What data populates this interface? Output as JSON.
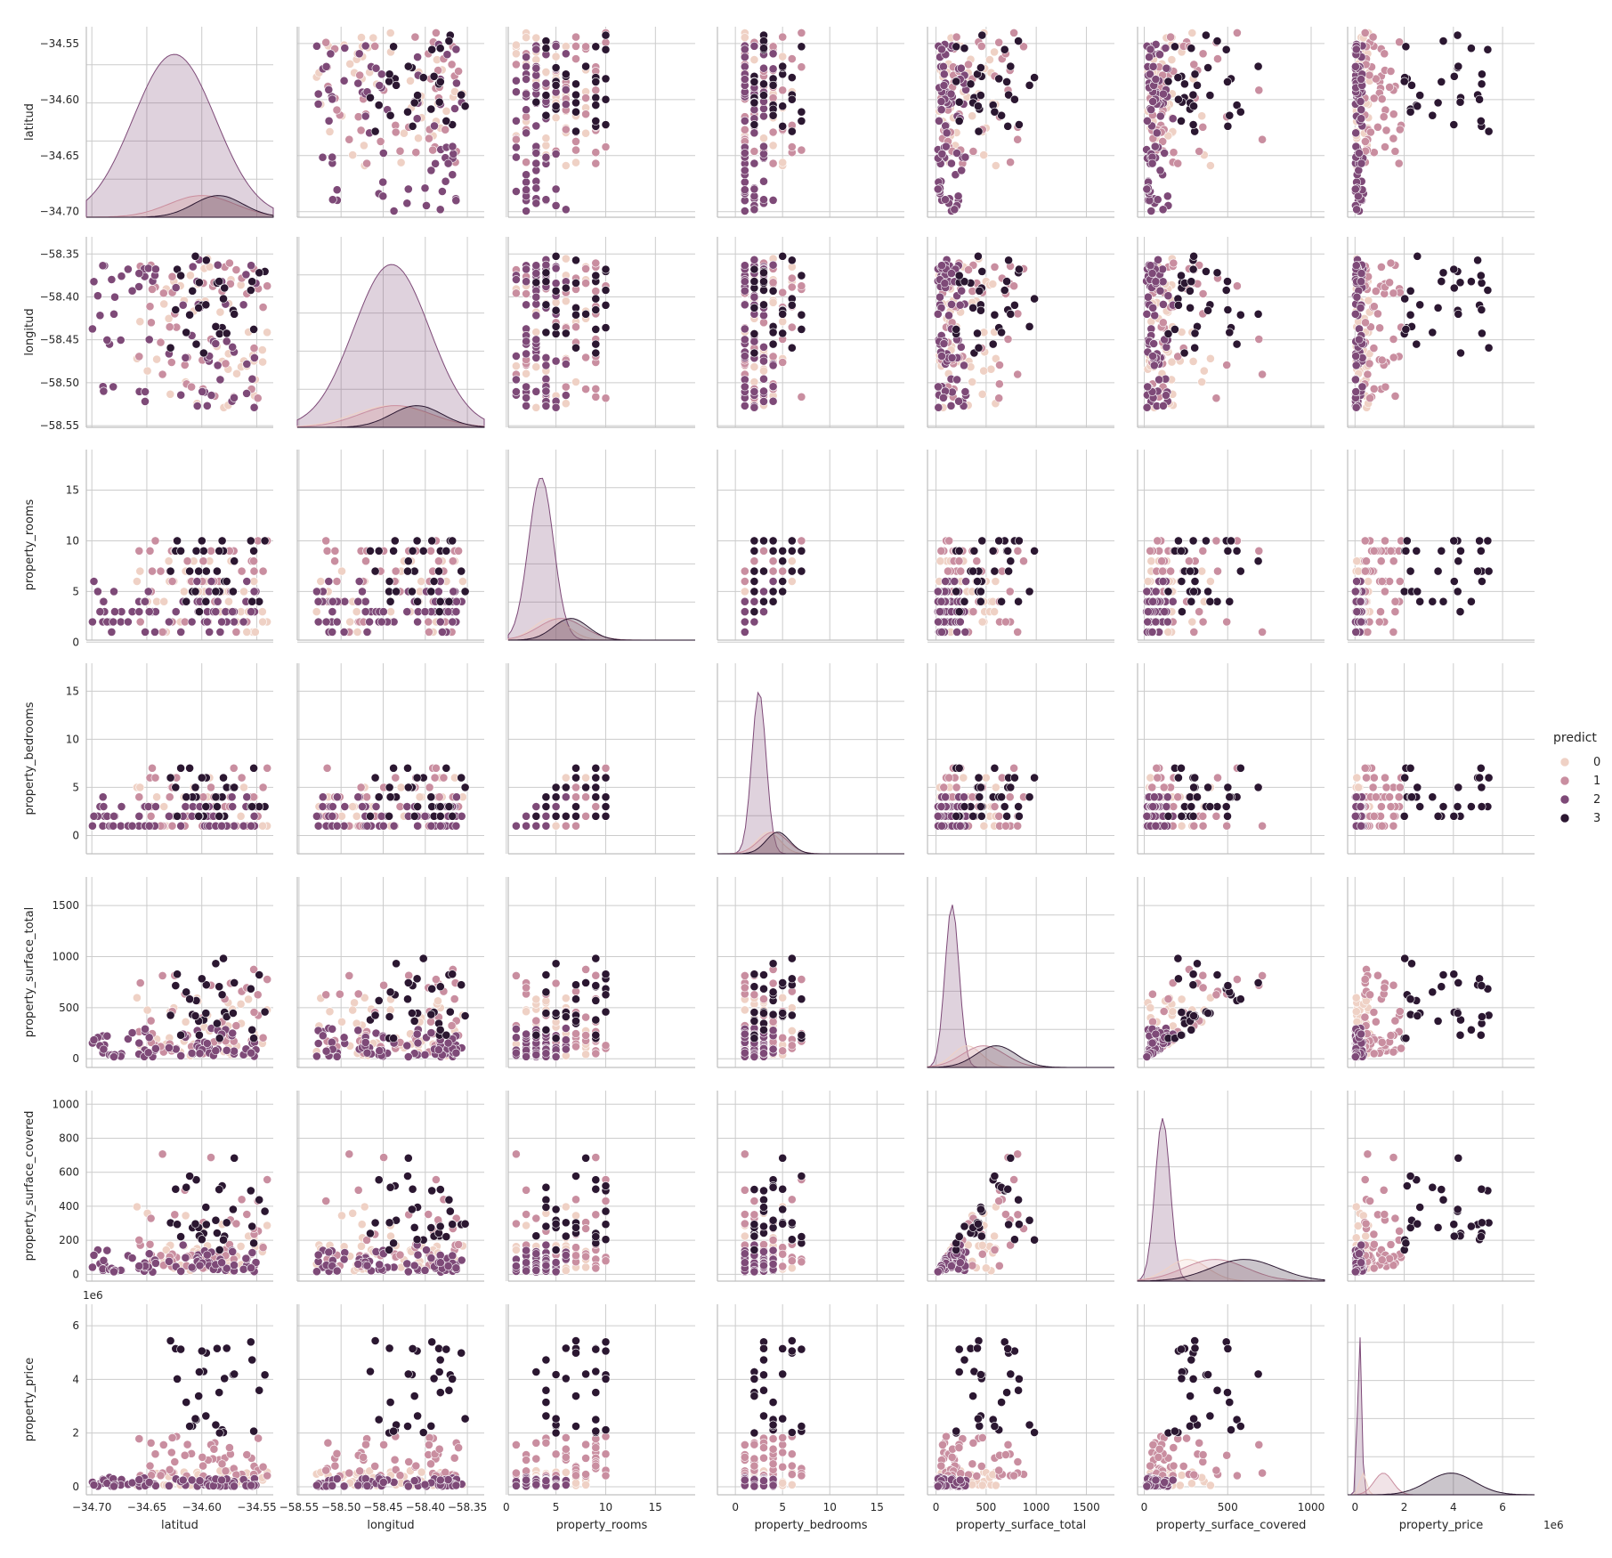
{
  "chart_data": {
    "type": "scatter",
    "kind": "pairplot",
    "variables": [
      "latitud",
      "longitud",
      "property_rooms",
      "property_bedrooms",
      "property_surface_total",
      "property_surface_covered",
      "property_price"
    ],
    "axes": {
      "latitud": {
        "label": "latitud",
        "ticks": [
          -34.7,
          -34.65,
          -34.6,
          -34.55
        ],
        "tick_labels": [
          "−34.70",
          "−34.65",
          "−34.60",
          "−34.55"
        ],
        "lim": [
          -34.705,
          -34.535
        ]
      },
      "longitud": {
        "label": "longitud",
        "ticks": [
          -58.55,
          -58.5,
          -58.45,
          -58.4,
          -58.35
        ],
        "tick_labels": [
          "−58.55",
          "−58.50",
          "−58.45",
          "−58.40",
          "−58.35"
        ],
        "lim": [
          -58.552,
          -58.33
        ]
      },
      "property_rooms": {
        "label": "property_rooms",
        "ticks": [
          0,
          5,
          10,
          15
        ],
        "tick_labels": [
          "0",
          "5",
          "10",
          "15"
        ],
        "lim": [
          0.2,
          19.0
        ]
      },
      "property_bedrooms": {
        "label": "property_bedrooms",
        "ticks": [
          0,
          5,
          10,
          15
        ],
        "tick_labels": [
          "0",
          "5",
          "10",
          "15"
        ],
        "lim": [
          -1.9,
          17.9
        ]
      },
      "property_surface_total": {
        "label": "property_surface_total",
        "ticks": [
          0,
          500,
          1000,
          1500
        ],
        "tick_labels": [
          "0",
          "500",
          "1000",
          "1500"
        ],
        "lim": [
          -85,
          1780
        ]
      },
      "property_surface_covered": {
        "label": "property_surface_covered",
        "ticks": [
          0,
          200,
          400,
          600,
          800,
          1000
        ],
        "tick_labels": [
          "0",
          "200",
          "400",
          "600",
          "800",
          "1000"
        ],
        "lim": [
          -40,
          1080
        ]
      },
      "property_price": {
        "label": "property_price",
        "ticks": [
          0,
          2,
          4,
          6
        ],
        "tick_labels": [
          "0",
          "2",
          "4",
          "6"
        ],
        "lim": [
          -0.3,
          6.8
        ],
        "offset_text": "1e6"
      }
    },
    "x_tick_overrides": {
      "property_surface_covered": {
        "ticks": [
          0,
          500,
          1000
        ],
        "tick_labels": [
          "0",
          "500",
          "1000"
        ]
      },
      "property_price": {
        "lim": [
          -0.3,
          7.3
        ]
      }
    },
    "legend": {
      "title": "predict",
      "placement": "right",
      "entries": [
        {
          "name": "0",
          "color": "#efd1c5"
        },
        {
          "name": "1",
          "color": "#c98ea0"
        },
        {
          "name": "2",
          "color": "#7e4a78"
        },
        {
          "name": "3",
          "color": "#2b1731"
        }
      ]
    },
    "cluster_profiles": [
      {
        "predict": "0",
        "latitud": [
          -34.66,
          -34.54
        ],
        "longitud": [
          -58.53,
          -58.35
        ],
        "property_rooms": [
          1,
          8
        ],
        "property_bedrooms": [
          1,
          6
        ],
        "property_surface_total": [
          20,
          600
        ],
        "property_surface_covered": [
          20,
          500
        ],
        "property_price": [
          0.05,
          0.6
        ]
      },
      {
        "predict": "1",
        "latitud": [
          -34.66,
          -34.54
        ],
        "longitud": [
          -58.52,
          -58.35
        ],
        "property_rooms": [
          1,
          10
        ],
        "property_bedrooms": [
          1,
          7
        ],
        "property_surface_total": [
          50,
          900
        ],
        "property_surface_covered": [
          50,
          800
        ],
        "property_price": [
          0.4,
          1.9
        ]
      },
      {
        "predict": "2",
        "latitud": [
          -34.7,
          -34.55
        ],
        "longitud": [
          -58.53,
          -58.35
        ],
        "property_rooms": [
          1,
          6
        ],
        "property_bedrooms": [
          1,
          4
        ],
        "property_surface_total": [
          20,
          300
        ],
        "property_surface_covered": [
          20,
          200
        ],
        "property_price": [
          0.02,
          0.35
        ]
      },
      {
        "predict": "3",
        "latitud": [
          -34.63,
          -34.54
        ],
        "longitud": [
          -58.47,
          -58.35
        ],
        "property_rooms": [
          3,
          10
        ],
        "property_bedrooms": [
          2,
          7
        ],
        "property_surface_total": [
          200,
          1000
        ],
        "property_surface_covered": [
          200,
          1000
        ],
        "property_price": [
          2.0,
          5.8
        ]
      }
    ],
    "grid": true
  }
}
